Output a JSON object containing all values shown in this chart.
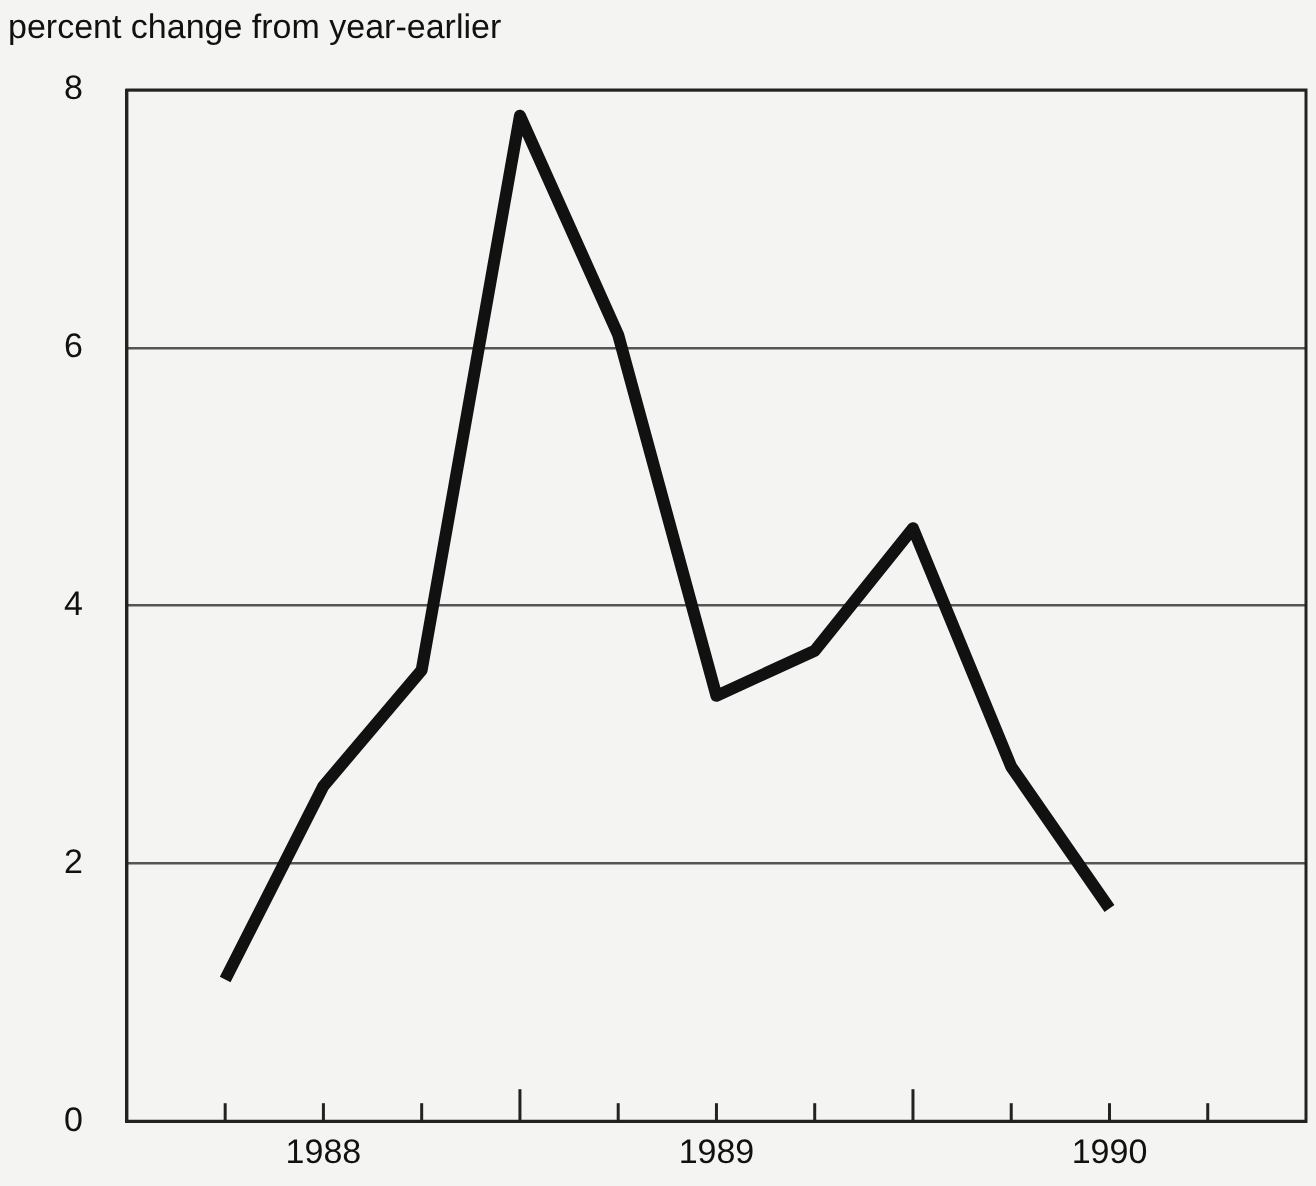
{
  "chart_data": {
    "type": "line",
    "ylabel": "percent change from year-earlier",
    "x": [
      1988.25,
      1988.5,
      1988.75,
      1989.0,
      1989.25,
      1989.5,
      1989.75,
      1990.0,
      1990.25,
      1990.5
    ],
    "series": [
      {
        "color": "#111111",
        "values": [
          1.1,
          2.6,
          3.5,
          7.8,
          6.1,
          3.3,
          3.65,
          4.6,
          2.75,
          1.65
        ]
      }
    ],
    "xlim": [
      1988,
      1991
    ],
    "xticks": [
      {
        "value": 1988.25,
        "label": null
      },
      {
        "value": 1988.5,
        "label": "1988"
      },
      {
        "value": 1988.75,
        "label": null
      },
      {
        "value": 1989,
        "label": null
      },
      {
        "value": 1989.25,
        "label": null
      },
      {
        "value": 1989.5,
        "label": "1989"
      },
      {
        "value": 1989.75,
        "label": null
      },
      {
        "value": 1990,
        "label": null
      },
      {
        "value": 1990.25,
        "label": null
      },
      {
        "value": 1990.5,
        "label": "1990"
      },
      {
        "value": 1990.75,
        "label": null
      }
    ],
    "ylim": [
      0,
      8
    ],
    "yticks": [
      0,
      2,
      4,
      6,
      8
    ],
    "grid": "y",
    "legend": false,
    "marker": "none",
    "line_style": "solid"
  }
}
